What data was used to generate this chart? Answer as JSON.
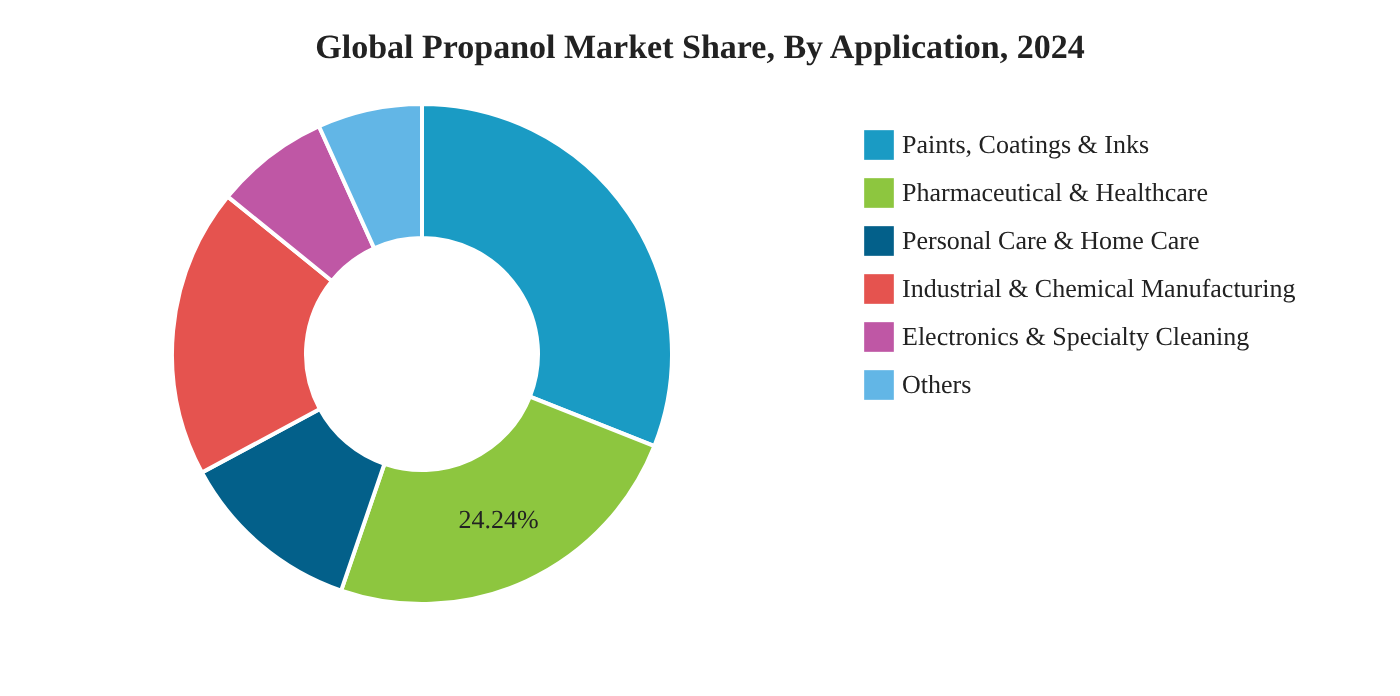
{
  "chart_data": {
    "type": "donut",
    "title": "Global Propanol Market Share, By Application, 2024",
    "categories": [
      "Paints, Coatings & Inks",
      "Pharmaceutical & Healthcare",
      "Personal Care & Home Care",
      "Industrial & Chemical Manufacturing",
      "Electronics & Specialty Cleaning",
      "Others"
    ],
    "values": [
      31.0,
      24.24,
      11.9,
      18.7,
      7.4,
      6.76
    ],
    "colors": [
      "#1a9bc4",
      "#8dc63f",
      "#03608a",
      "#e5534f",
      "#bf57a5",
      "#62b6e6"
    ],
    "value_labels": [
      null,
      "24.24%",
      null,
      null,
      null,
      null
    ],
    "legend": "right"
  }
}
